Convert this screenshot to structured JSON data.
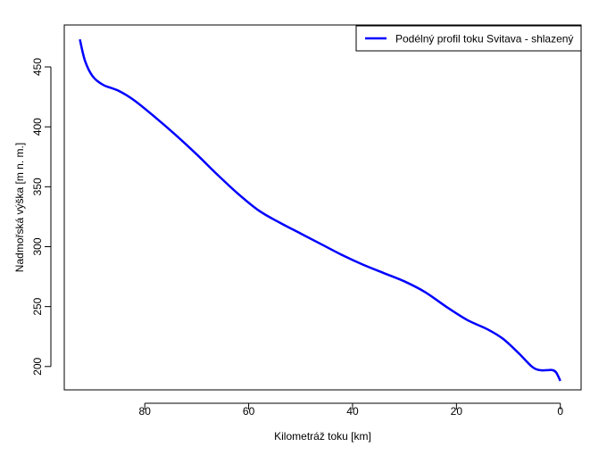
{
  "chart_data": {
    "type": "line",
    "title": "",
    "xlabel": "Kilometráž toku [km]",
    "ylabel": "Nadmořská výška [m n. m.]",
    "xlim": [
      95.5,
      -4
    ],
    "ylim": [
      180.5,
      485
    ],
    "x_reversed": true,
    "x_ticks": [
      80,
      60,
      40,
      20,
      0
    ],
    "y_ticks": [
      200,
      250,
      300,
      350,
      400,
      450
    ],
    "grid": false,
    "legend_position": "top-right",
    "series": [
      {
        "name": "Podélný profil toku Svitava - shlazený",
        "color": "#0000ff",
        "x": [
          92.5,
          91.5,
          90,
          88,
          85,
          82,
          78,
          74,
          70,
          66,
          62,
          58,
          54,
          50,
          46,
          42,
          38,
          34,
          30,
          26,
          22,
          18,
          14,
          11,
          8,
          5.5,
          4,
          2.5,
          1.5,
          0.8,
          0
        ],
        "y": [
          473,
          455,
          442,
          435,
          430,
          422,
          408,
          393,
          377,
          360,
          344,
          330,
          320,
          311,
          302,
          293,
          285,
          278,
          271,
          262,
          250,
          239,
          231,
          223,
          211,
          200,
          197,
          197,
          197,
          195,
          188
        ]
      }
    ]
  }
}
